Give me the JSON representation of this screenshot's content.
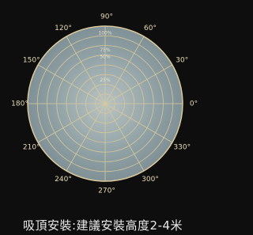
{
  "diagram": {
    "angle_labels": [
      "0°",
      "30°",
      "60°",
      "90°",
      "120°",
      "150°",
      "180°",
      "210°",
      "240°",
      "270°",
      "300°",
      "330°"
    ],
    "radial_labels": [
      "100%",
      "75%",
      "50%",
      "25%"
    ]
  },
  "caption": "吸頂安裝:建議安裝高度2-4米"
}
